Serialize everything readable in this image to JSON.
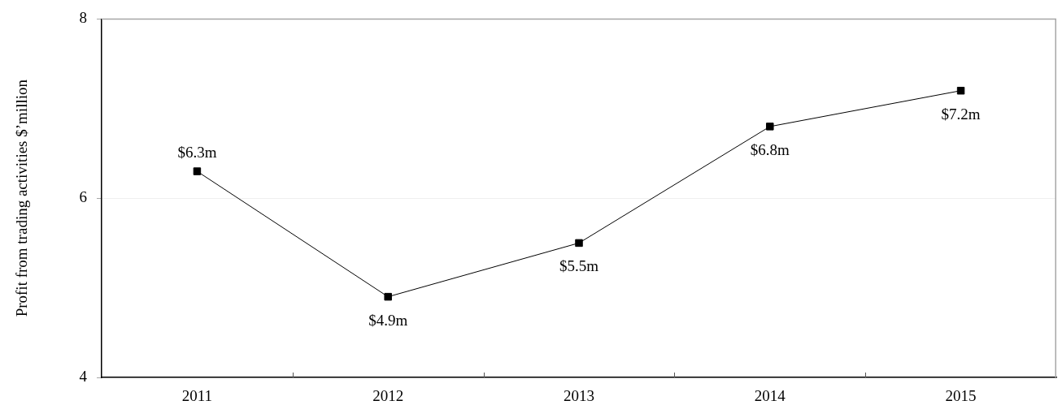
{
  "chart_data": {
    "type": "line",
    "ylabel": "Profit from trading activities $’million",
    "categories": [
      "2011",
      "2012",
      "2013",
      "2014",
      "2015"
    ],
    "values": [
      6.3,
      4.9,
      5.5,
      6.8,
      7.2
    ],
    "color": "#000000",
    "value_labels": [
      "$6.3m",
      "$4.9m",
      "$5.5m",
      "$6.8m",
      "$7.2m"
    ],
    "ylim": [
      4,
      8
    ],
    "yticks": [
      4,
      6,
      8
    ],
    "grid": "y",
    "marker": "square"
  }
}
